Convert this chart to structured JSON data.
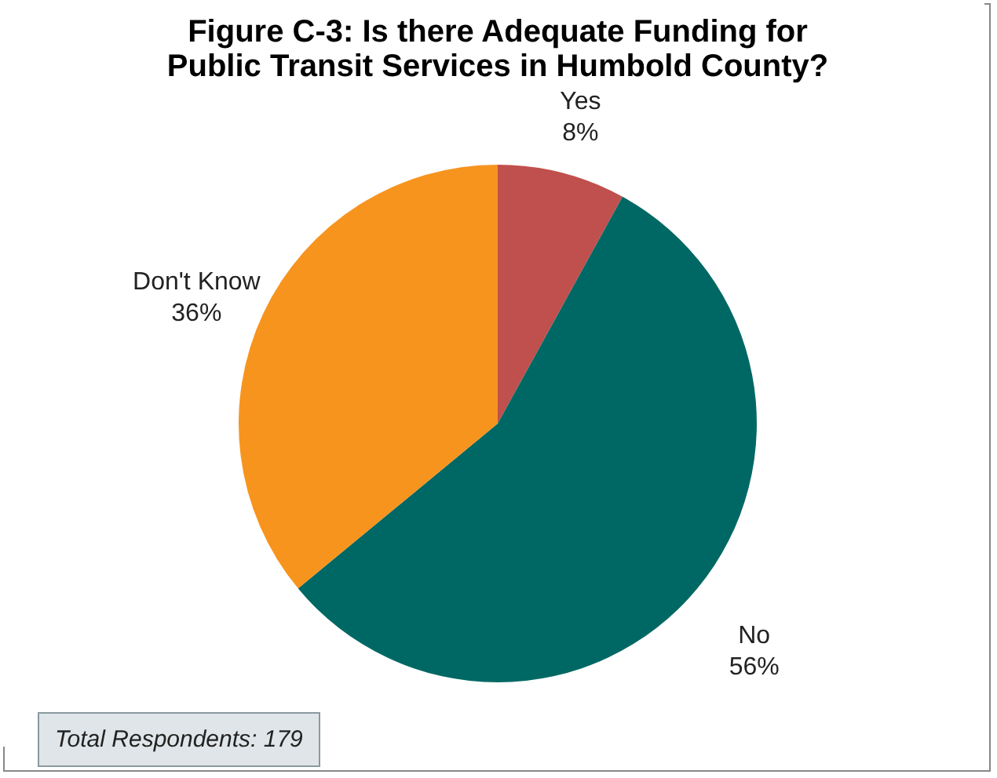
{
  "chart_data": {
    "type": "pie",
    "title": "Figure C-3: Is there Adequate Funding for Public Transit Services in Humbold County?",
    "categories": [
      "Yes",
      "No",
      "Don't Know"
    ],
    "values": [
      8,
      56,
      36
    ],
    "value_labels": [
      "8%",
      "56%",
      "36%"
    ],
    "colors": [
      "#c0504d",
      "#006864",
      "#f7941e"
    ],
    "annotations": [
      "Total Respondents: 179"
    ],
    "legend": false
  }
}
